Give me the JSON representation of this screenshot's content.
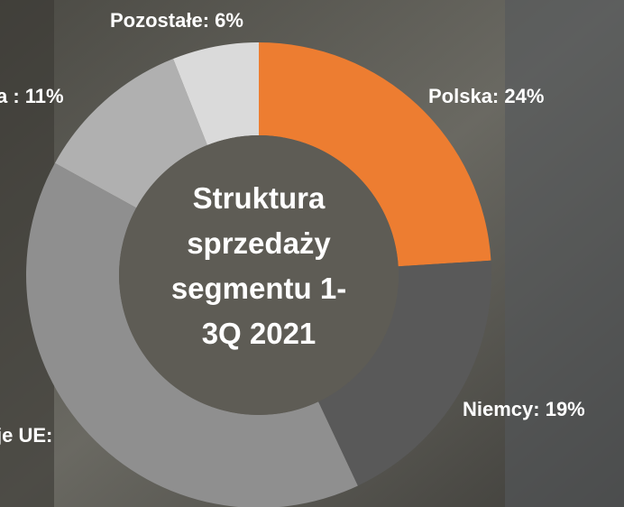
{
  "chart_data": {
    "type": "donut",
    "title": "Struktura sprzedaży segmentu 1-3Q 2021",
    "labels": [
      "Polska: 24%",
      "Niemcy: 19%",
      "je UE:",
      "a : 11%",
      "Pozostałe: 6%"
    ],
    "values": [
      24,
      19,
      40,
      11,
      6
    ],
    "colors": [
      "#ed7d31",
      "#595959",
      "#8f8f8f",
      "#b0b0b0",
      "#dadada"
    ]
  }
}
